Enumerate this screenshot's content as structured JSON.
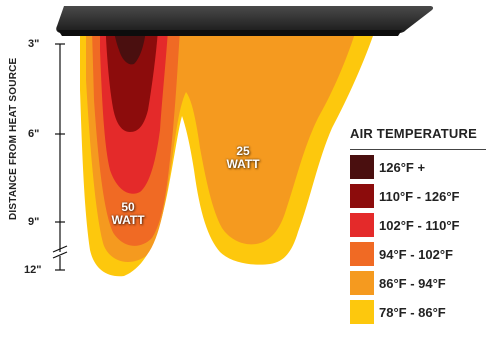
{
  "axis": {
    "title": "DISTANCE FROM HEAT SOURCE",
    "ticks": [
      "3\"",
      "6\"",
      "9\"",
      "12\""
    ]
  },
  "zones": {
    "left_label_line1": "50",
    "left_label_line2": "WATT",
    "right_label_line1": "25",
    "right_label_line2": "WATT"
  },
  "legend": {
    "title": "AIR TEMPERATURE",
    "items": [
      {
        "label": "126°F +",
        "color": "#4a0f0f"
      },
      {
        "label": "110°F - 126°F",
        "color": "#8c0c0c"
      },
      {
        "label": "102°F - 110°F",
        "color": "#e42a2a"
      },
      {
        "label": "94°F - 102°F",
        "color": "#f06a24"
      },
      {
        "label": "86°F - 94°F",
        "color": "#f59a1f"
      },
      {
        "label": "78°F - 86°F",
        "color": "#fdc80d"
      }
    ]
  }
}
